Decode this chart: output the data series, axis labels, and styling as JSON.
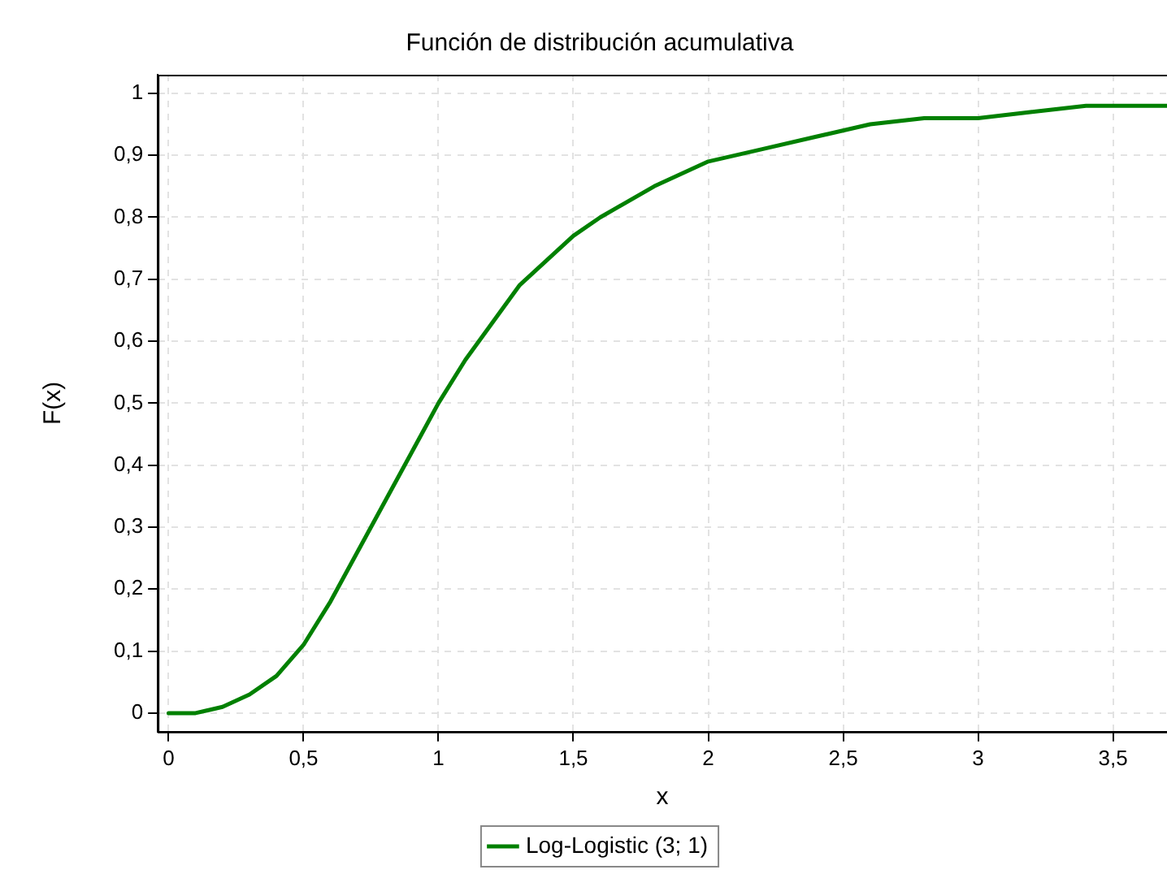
{
  "chart_data": {
    "type": "line",
    "title": "Función de distribución acumulativa",
    "xlabel": "x",
    "ylabel": "F(x)",
    "x": [
      0,
      0.1,
      0.2,
      0.3,
      0.4,
      0.5,
      0.6,
      0.7,
      0.8,
      0.9,
      1.0,
      1.1,
      1.2,
      1.3,
      1.4,
      1.5,
      1.6,
      1.8,
      2.0,
      2.2,
      2.4,
      2.6,
      2.8,
      3.0,
      3.2,
      3.4,
      3.6,
      3.7
    ],
    "series": [
      {
        "name": "Log-Logistic (3; 1)",
        "color": "#008000",
        "values": [
          0,
          0,
          0.01,
          0.03,
          0.06,
          0.11,
          0.18,
          0.26,
          0.34,
          0.42,
          0.5,
          0.57,
          0.63,
          0.69,
          0.73,
          0.77,
          0.8,
          0.85,
          0.89,
          0.91,
          0.93,
          0.95,
          0.96,
          0.96,
          0.97,
          0.98,
          0.98,
          0.98
        ]
      }
    ],
    "xlim": [
      -0.04,
      3.7
    ],
    "ylim": [
      -0.03,
      1.03
    ],
    "xticks": [
      0,
      {
        "value": 0.5,
        "label": "0,5"
      },
      1,
      {
        "value": 1.5,
        "label": "1,5"
      },
      2,
      {
        "value": 2.5,
        "label": "2,5"
      },
      3,
      {
        "value": 3.5,
        "label": "3,5"
      }
    ],
    "yticks": [
      0,
      {
        "value": 0.1,
        "label": "0,1"
      },
      {
        "value": 0.2,
        "label": "0,2"
      },
      {
        "value": 0.3,
        "label": "0,3"
      },
      {
        "value": 0.4,
        "label": "0,4"
      },
      {
        "value": 0.5,
        "label": "0,5"
      },
      {
        "value": 0.6,
        "label": "0,6"
      },
      {
        "value": 0.7,
        "label": "0,7"
      },
      {
        "value": 0.8,
        "label": "0,8"
      },
      {
        "value": 0.9,
        "label": "0,9"
      },
      1
    ],
    "grid": true,
    "legend": "bottom",
    "marker": "none",
    "line_style": "solid"
  }
}
